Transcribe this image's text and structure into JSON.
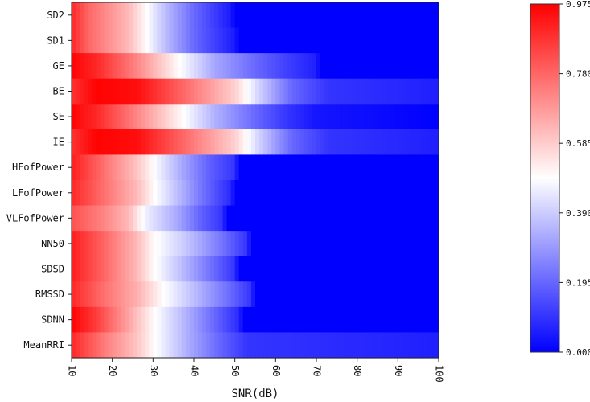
{
  "chart_data": {
    "type": "heatmap",
    "title": "",
    "xlabel": "SNR(dB)",
    "ylabel": "",
    "x_ticks": [
      10,
      20,
      30,
      40,
      50,
      60,
      70,
      80,
      90,
      100
    ],
    "xlim": [
      10,
      100
    ],
    "colorbar": {
      "min": 0.0,
      "max": 0.975,
      "tick_labels": [
        "0.000",
        "0.1950",
        "0.3900",
        "0.5850",
        "0.7800",
        "0.9750"
      ],
      "colors": {
        "low": "#0000ff",
        "mid": "#ffffff",
        "high": "#ff0000"
      }
    },
    "rows": [
      {
        "name": "SD2",
        "profile": [
          [
            10,
            0.9
          ],
          [
            14,
            0.78
          ],
          [
            24,
            0.62
          ],
          [
            28,
            0.5
          ],
          [
            33,
            0.36
          ],
          [
            40,
            0.2
          ],
          [
            49,
            0.05
          ],
          [
            50,
            0.0
          ],
          [
            100,
            0.0
          ]
        ]
      },
      {
        "name": "SD1",
        "profile": [
          [
            10,
            0.9
          ],
          [
            14,
            0.78
          ],
          [
            24,
            0.62
          ],
          [
            28,
            0.5
          ],
          [
            33,
            0.36
          ],
          [
            40,
            0.2
          ],
          [
            50,
            0.05
          ],
          [
            51,
            0.0
          ],
          [
            100,
            0.0
          ]
        ]
      },
      {
        "name": "GE",
        "profile": [
          [
            10,
            0.97
          ],
          [
            16,
            0.9
          ],
          [
            26,
            0.72
          ],
          [
            36,
            0.5
          ],
          [
            45,
            0.32
          ],
          [
            55,
            0.2
          ],
          [
            63,
            0.12
          ],
          [
            70,
            0.06
          ],
          [
            71,
            0.0
          ],
          [
            100,
            0.0
          ]
        ]
      },
      {
        "name": "BE",
        "profile": [
          [
            10,
            0.88
          ],
          [
            16,
            0.97
          ],
          [
            26,
            0.95
          ],
          [
            36,
            0.8
          ],
          [
            50,
            0.58
          ],
          [
            56,
            0.4
          ],
          [
            64,
            0.2
          ],
          [
            73,
            0.1
          ],
          [
            100,
            0.06
          ]
        ]
      },
      {
        "name": "SE",
        "profile": [
          [
            10,
            0.97
          ],
          [
            16,
            0.9
          ],
          [
            26,
            0.72
          ],
          [
            36,
            0.52
          ],
          [
            45,
            0.34
          ],
          [
            55,
            0.2
          ],
          [
            63,
            0.1
          ],
          [
            70,
            0.04
          ],
          [
            100,
            0.0
          ]
        ]
      },
      {
        "name": "IE",
        "profile": [
          [
            10,
            0.88
          ],
          [
            16,
            0.97
          ],
          [
            26,
            0.95
          ],
          [
            36,
            0.8
          ],
          [
            50,
            0.58
          ],
          [
            56,
            0.4
          ],
          [
            64,
            0.2
          ],
          [
            73,
            0.1
          ],
          [
            100,
            0.06
          ]
        ]
      },
      {
        "name": "HFofPower",
        "profile": [
          [
            10,
            0.92
          ],
          [
            18,
            0.76
          ],
          [
            26,
            0.6
          ],
          [
            32,
            0.44
          ],
          [
            38,
            0.3
          ],
          [
            44,
            0.18
          ],
          [
            50,
            0.1
          ],
          [
            51,
            0.0
          ],
          [
            100,
            0.0
          ]
        ]
      },
      {
        "name": "LFofPower",
        "profile": [
          [
            10,
            0.9
          ],
          [
            18,
            0.76
          ],
          [
            26,
            0.62
          ],
          [
            30,
            0.5
          ],
          [
            36,
            0.36
          ],
          [
            42,
            0.22
          ],
          [
            49,
            0.08
          ],
          [
            50,
            0.0
          ],
          [
            100,
            0.0
          ]
        ]
      },
      {
        "name": "VLFofPower",
        "profile": [
          [
            10,
            0.82
          ],
          [
            18,
            0.72
          ],
          [
            24,
            0.62
          ],
          [
            28,
            0.46
          ],
          [
            36,
            0.32
          ],
          [
            42,
            0.18
          ],
          [
            47,
            0.1
          ],
          [
            48,
            0.0
          ],
          [
            100,
            0.0
          ]
        ]
      },
      {
        "name": "NN50",
        "profile": [
          [
            10,
            0.92
          ],
          [
            18,
            0.78
          ],
          [
            26,
            0.62
          ],
          [
            30,
            0.5
          ],
          [
            38,
            0.38
          ],
          [
            46,
            0.24
          ],
          [
            53,
            0.1
          ],
          [
            54,
            0.0
          ],
          [
            100,
            0.0
          ]
        ]
      },
      {
        "name": "SDSD",
        "profile": [
          [
            10,
            0.92
          ],
          [
            18,
            0.78
          ],
          [
            26,
            0.62
          ],
          [
            30,
            0.5
          ],
          [
            38,
            0.34
          ],
          [
            44,
            0.22
          ],
          [
            50,
            0.1
          ],
          [
            51,
            0.0
          ],
          [
            100,
            0.0
          ]
        ]
      },
      {
        "name": "RMSSD",
        "profile": [
          [
            10,
            0.9
          ],
          [
            18,
            0.76
          ],
          [
            26,
            0.64
          ],
          [
            32,
            0.5
          ],
          [
            40,
            0.36
          ],
          [
            48,
            0.22
          ],
          [
            54,
            0.1
          ],
          [
            55,
            0.0
          ],
          [
            100,
            0.0
          ]
        ]
      },
      {
        "name": "SDNN",
        "profile": [
          [
            10,
            0.97
          ],
          [
            16,
            0.86
          ],
          [
            24,
            0.66
          ],
          [
            30,
            0.5
          ],
          [
            38,
            0.34
          ],
          [
            46,
            0.18
          ],
          [
            51,
            0.08
          ],
          [
            52,
            0.0
          ],
          [
            100,
            0.0
          ]
        ]
      },
      {
        "name": "MeanRRI",
        "profile": [
          [
            10,
            0.9
          ],
          [
            18,
            0.74
          ],
          [
            26,
            0.6
          ],
          [
            30,
            0.5
          ],
          [
            38,
            0.34
          ],
          [
            46,
            0.2
          ],
          [
            53,
            0.1
          ],
          [
            100,
            0.06
          ]
        ]
      }
    ]
  }
}
